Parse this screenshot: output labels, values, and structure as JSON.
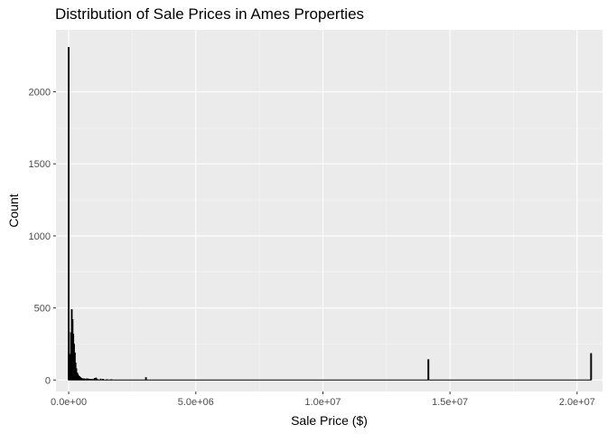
{
  "chart_data": {
    "type": "bar",
    "title": "Distribution of Sale Prices in Ames Properties",
    "xlabel": "Sale Price ($)",
    "ylabel": "Count",
    "xlim": [
      -500000,
      21000000
    ],
    "ylim": [
      -80,
      2430
    ],
    "x_ticks": [
      0,
      5000000,
      10000000,
      15000000,
      20000000
    ],
    "x_tick_labels": [
      "0.0e+00",
      "5.0e+06",
      "1.0e+07",
      "1.5e+07",
      "2.0e+07"
    ],
    "y_ticks": [
      0,
      500,
      1000,
      1500,
      2000
    ],
    "y_tick_labels": [
      "0",
      "500",
      "1000",
      "1500",
      "2000"
    ],
    "grid": true,
    "bin_width": 30000,
    "bars": [
      {
        "x": 0,
        "y": 2310
      },
      {
        "x": 30000,
        "y": 180
      },
      {
        "x": 60000,
        "y": 140
      },
      {
        "x": 90000,
        "y": 330
      },
      {
        "x": 120000,
        "y": 490
      },
      {
        "x": 150000,
        "y": 420
      },
      {
        "x": 180000,
        "y": 320
      },
      {
        "x": 210000,
        "y": 250
      },
      {
        "x": 240000,
        "y": 190
      },
      {
        "x": 270000,
        "y": 120
      },
      {
        "x": 300000,
        "y": 80
      },
      {
        "x": 330000,
        "y": 50
      },
      {
        "x": 360000,
        "y": 40
      },
      {
        "x": 390000,
        "y": 30
      },
      {
        "x": 420000,
        "y": 25
      },
      {
        "x": 450000,
        "y": 20
      },
      {
        "x": 480000,
        "y": 15
      },
      {
        "x": 510000,
        "y": 12
      },
      {
        "x": 540000,
        "y": 10
      },
      {
        "x": 600000,
        "y": 10
      },
      {
        "x": 660000,
        "y": 8
      },
      {
        "x": 720000,
        "y": 10
      },
      {
        "x": 780000,
        "y": 8
      },
      {
        "x": 840000,
        "y": 6
      },
      {
        "x": 900000,
        "y": 6
      },
      {
        "x": 960000,
        "y": 5
      },
      {
        "x": 1020000,
        "y": 12
      },
      {
        "x": 1080000,
        "y": 15
      },
      {
        "x": 1140000,
        "y": 5
      },
      {
        "x": 1260000,
        "y": 8
      },
      {
        "x": 1350000,
        "y": 6
      },
      {
        "x": 1500000,
        "y": 4
      },
      {
        "x": 1680000,
        "y": 4
      },
      {
        "x": 3040000,
        "y": 18
      },
      {
        "x": 14150000,
        "y": 143
      },
      {
        "x": 20550000,
        "y": 185
      }
    ]
  }
}
